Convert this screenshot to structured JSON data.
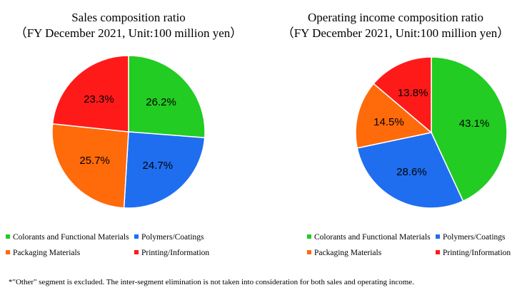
{
  "chart_data": [
    {
      "type": "pie",
      "title": "Sales composition ratio",
      "subtitle": "（FY December 2021, Unit:100 million yen）",
      "slices": [
        {
          "label": "Colorants and Functional Materials",
          "value": 26.2,
          "text": "26.2%",
          "color": "#22cc22"
        },
        {
          "label": "Polymers/Coatings",
          "value": 24.7,
          "text": "24.7%",
          "color": "#1f6ef0"
        },
        {
          "label": "Packaging Materials",
          "value": 25.7,
          "text": "25.7%",
          "color": "#ff6a0a"
        },
        {
          "label": "Printing/Information",
          "value": 23.3,
          "text": "23.3%",
          "color": "#ff1a1a"
        }
      ],
      "legend": [
        "Colorants and Functional Materials",
        "Polymers/Coatings",
        "Packaging Materials",
        "Printing/Information"
      ]
    },
    {
      "type": "pie",
      "title": "Operating income composition ratio",
      "subtitle": "（FY December 2021, Unit:100 million yen）",
      "slices": [
        {
          "label": "Colorants and Functional Materials",
          "value": 43.1,
          "text": "43.1%",
          "color": "#22cc22"
        },
        {
          "label": "Polymers/Coatings",
          "value": 28.6,
          "text": "28.6%",
          "color": "#1f6ef0"
        },
        {
          "label": "Packaging Materials",
          "value": 14.5,
          "text": "14.5%",
          "color": "#ff6a0a"
        },
        {
          "label": "Printing/Information",
          "value": 13.8,
          "text": "13.8%",
          "color": "#ff1a1a"
        }
      ],
      "legend": [
        "Colorants and Functional Materials",
        "Polymers/Coatings",
        "Packaging Materials",
        "Printing/Information"
      ]
    }
  ],
  "footnote": "*\"Other\" segment is excluded. The inter-segment elimination is not taken into consideration for both sales and operating income."
}
